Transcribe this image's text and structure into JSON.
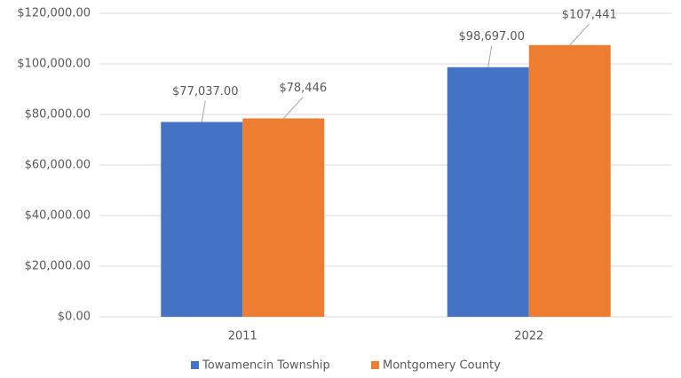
{
  "chart_data": {
    "type": "bar",
    "categories": [
      "2011",
      "2022"
    ],
    "series": [
      {
        "name": "Towamencin Township",
        "color": "#4472c4",
        "values": [
          77037,
          98697
        ],
        "value_labels": [
          "$77,037.00",
          "$98,697.00"
        ]
      },
      {
        "name": "Montgomery County",
        "color": "#ed7d31",
        "values": [
          78446,
          107441
        ],
        "value_labels": [
          "$78,446",
          "$107,441"
        ]
      }
    ],
    "ylim": [
      0,
      120000
    ],
    "yticks": [
      {
        "value": 0,
        "label": "$0.00"
      },
      {
        "value": 20000,
        "label": "$20,000.00"
      },
      {
        "value": 40000,
        "label": "$40,000.00"
      },
      {
        "value": 60000,
        "label": "$60,000.00"
      },
      {
        "value": 80000,
        "label": "$80,000.00"
      },
      {
        "value": 100000,
        "label": "$100,000.00"
      },
      {
        "value": 120000,
        "label": "$120,000.00"
      }
    ],
    "grid": true,
    "legend": "bottom"
  }
}
